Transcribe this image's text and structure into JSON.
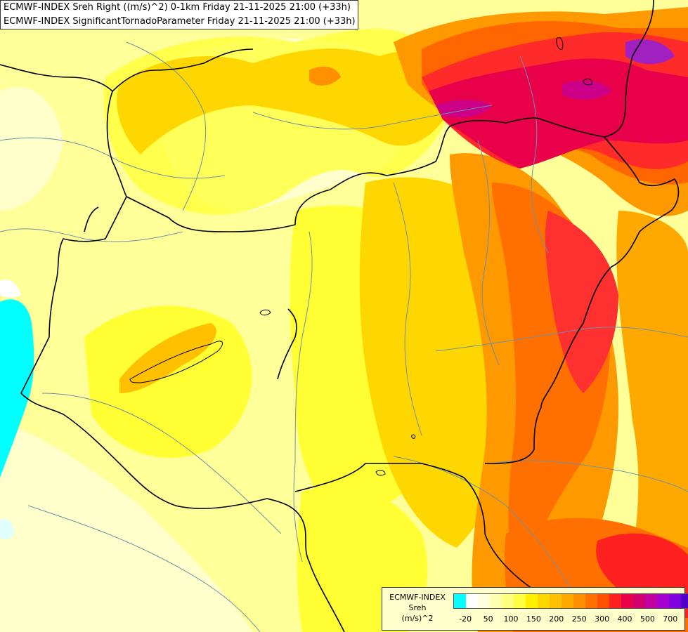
{
  "header": {
    "line1": "ECMWF-INDEX Sreh Right ((m/s)^2) 0-1km Friday 21-11-2025 21:00 (+33h)",
    "line2": "ECMWF-INDEX SignificantTornadoParameter Friday 21-11-2025 21:00 (+33h)"
  },
  "legend": {
    "label1": "ECMWF-INDEX",
    "label2": "Sreh",
    "label3": "(m/s)^2",
    "colors": [
      "#00ffff",
      "#ffffff",
      "#ffffe0",
      "#ffffb0",
      "#ffff80",
      "#ffff40",
      "#ffef00",
      "#ffd700",
      "#ffc000",
      "#ffa800",
      "#ff9000",
      "#ff7000",
      "#ff5000",
      "#ff2020",
      "#e8004a",
      "#d00070",
      "#c000a0",
      "#a800d0",
      "#8000e0",
      "#5000c8"
    ],
    "ticks": [
      "-20",
      "50",
      "100",
      "150",
      "200",
      "250",
      "300",
      "400",
      "500",
      "700"
    ]
  },
  "colors": {
    "background": "#ffff99",
    "negative": "#00ffff",
    "light": "#ffffcc",
    "yellow": "#ffff33",
    "gold": "#ffd700",
    "orange": "#ff9900",
    "deep_orange": "#ff6600",
    "red": "#ff2a2a",
    "crimson": "#e8004a",
    "magenta": "#cc0088",
    "purple": "#a020c0"
  }
}
